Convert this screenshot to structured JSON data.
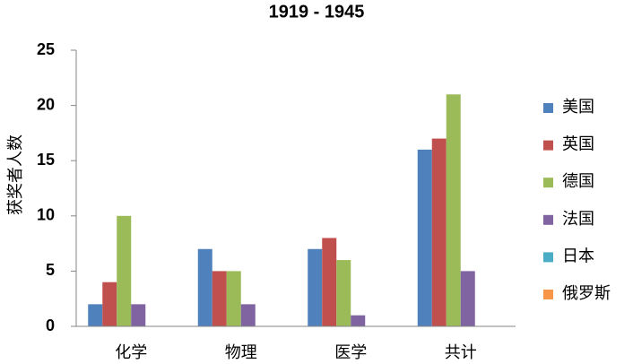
{
  "chart_data": {
    "type": "bar",
    "title": "1919 - 1945",
    "y_label": "获奖者人数",
    "categories": [
      "化学",
      "物理",
      "医学",
      "共计"
    ],
    "series": [
      {
        "name": "美国",
        "color": "#4F81BD",
        "values": [
          2,
          7,
          7,
          16
        ]
      },
      {
        "name": "英国",
        "color": "#C0504D",
        "values": [
          4,
          5,
          8,
          17
        ]
      },
      {
        "name": "德国",
        "color": "#9BBB59",
        "values": [
          10,
          5,
          6,
          21
        ]
      },
      {
        "name": "法国",
        "color": "#8064A2",
        "values": [
          2,
          2,
          1,
          5
        ]
      },
      {
        "name": "日本",
        "color": "#4BACC6",
        "values": [
          0,
          0,
          0,
          0
        ]
      },
      {
        "name": "俄罗斯",
        "color": "#F79646",
        "values": [
          0,
          0,
          0,
          0
        ]
      }
    ],
    "ylim": [
      0,
      25
    ],
    "yticks": [
      0,
      5,
      10,
      15,
      20,
      25
    ],
    "grid": false,
    "legend": "right"
  }
}
